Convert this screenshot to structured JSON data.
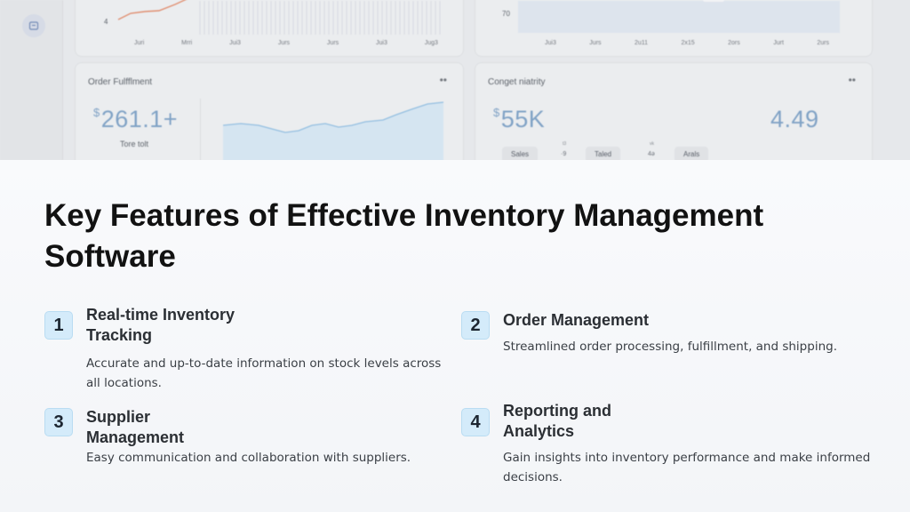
{
  "dashboard": {
    "rail_icon": "box-icon",
    "top_left_chart": {
      "y_tick": "4",
      "x_ticks": [
        "Juri",
        "Mrri",
        "Jui3",
        "Jurs",
        "Jurs",
        "Jui3",
        "Jug3"
      ]
    },
    "top_right_chart": {
      "y_tick": "70",
      "x_ticks": [
        "Jui3",
        "Jurs",
        "2u11",
        "2x15",
        "2ors",
        "Jurt",
        "2urs"
      ]
    },
    "order_card": {
      "title": "Order Fulfflment",
      "more": "••",
      "currency": "$",
      "value": "261.1+",
      "sub": "Tore tolt"
    },
    "right_card": {
      "title": "Conget niatrity",
      "more": "••",
      "currency": "$",
      "value": "55K",
      "metric": "4.49",
      "pills": [
        "Sales",
        "Taled",
        "Arals"
      ],
      "pill_nums": [
        "·9",
        "4ə"
      ],
      "tiny": [
        "t3",
        "vk"
      ]
    }
  },
  "page": {
    "title": "Key Features of Effective Inventory Management Software"
  },
  "features": [
    {
      "number": "1",
      "title": "Real-time Inventory Tracking",
      "description": "Accurate and up-to-date information on stock levels across all locations."
    },
    {
      "number": "2",
      "title": "Order Management",
      "description": "Streamlined order processing, fulfillment, and shipping."
    },
    {
      "number": "3",
      "title": "Supplier Management",
      "description": "Easy communication and collaboration with suppliers."
    },
    {
      "number": "4",
      "title": "Reporting and Analytics",
      "description": "Gain insights into inventory performance and make informed decisions."
    }
  ],
  "colors": {
    "badge_bg": "#d4ebfa",
    "chart_line": "#e08a6a",
    "chart_blue": "#8fbde0"
  }
}
